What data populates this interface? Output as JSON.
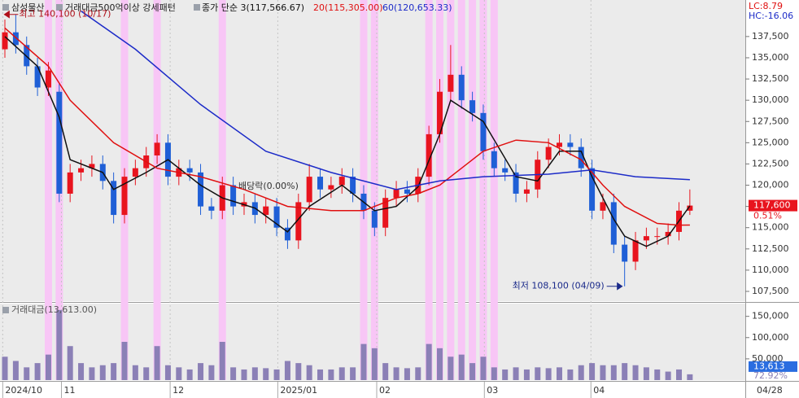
{
  "chart_data": [
    {
      "type": "candlestick",
      "title": "삼성물산",
      "subtitle": "거래대금500억이상 강세패턴",
      "lc_label": "LC:8.79",
      "hc_label": "HC:-16.06",
      "xlim": [
        -0.45,
        68.1
      ],
      "ylim": [
        106350,
        141800
      ],
      "yticks": [
        {
          "value": 107500,
          "label": "107,500"
        },
        {
          "value": 110000,
          "label": "110,000"
        },
        {
          "value": 112500,
          "label": "112,500"
        },
        {
          "value": 115000,
          "label": "115,000"
        },
        {
          "value": 117500,
          "label": "117,500"
        },
        {
          "value": 120000,
          "label": "120,000"
        },
        {
          "value": 122500,
          "label": "122,500"
        },
        {
          "value": 125000,
          "label": "125,000"
        },
        {
          "value": 127500,
          "label": "127,500"
        },
        {
          "value": 130000,
          "label": "130,000"
        },
        {
          "value": 132500,
          "label": "132,500"
        },
        {
          "value": 135000,
          "label": "135,000"
        },
        {
          "value": 137500,
          "label": "137,500"
        }
      ],
      "xticks": [
        {
          "value": -0.2,
          "label": "2024/10"
        },
        {
          "value": 5.2,
          "label": "11"
        },
        {
          "value": 15.2,
          "label": "12"
        },
        {
          "value": 25.1,
          "label": "2025/01"
        },
        {
          "value": 34.2,
          "label": "02"
        },
        {
          "value": 44.1,
          "label": "03"
        },
        {
          "value": 53.9,
          "label": "04"
        }
      ],
      "last_date": "04/28",
      "open": [
        136000,
        138000,
        136500,
        134000,
        131500,
        131000,
        119000,
        121500,
        122000,
        122500,
        120500,
        116500,
        121000,
        122000,
        123500,
        125000,
        121000,
        122000,
        121500,
        117500,
        117000,
        120000,
        117500,
        118000,
        116500,
        117500,
        115000,
        113500,
        118000,
        121000,
        119500,
        120000,
        121000,
        119000,
        117000,
        115000,
        118500,
        119500,
        119000,
        121000,
        126000,
        131000,
        133000,
        130000,
        128500,
        124000,
        122000,
        121500,
        119000,
        119500,
        123000,
        124500,
        125000,
        124500,
        122000,
        117000,
        118000,
        113000,
        111000,
        113500,
        114000,
        114000,
        114500,
        117000
      ],
      "high": [
        139500,
        140100,
        137500,
        135000,
        134500,
        132000,
        122500,
        123000,
        123500,
        123500,
        121500,
        122000,
        123000,
        124500,
        126000,
        126000,
        123000,
        123000,
        122500,
        118500,
        121000,
        121000,
        119000,
        119000,
        118500,
        118500,
        116000,
        119000,
        122500,
        122000,
        121000,
        122000,
        122000,
        120000,
        118000,
        119500,
        120500,
        120500,
        122000,
        127000,
        132500,
        136500,
        134000,
        131000,
        129500,
        125000,
        123000,
        122500,
        120500,
        124000,
        125500,
        126000,
        126000,
        125500,
        123000,
        119000,
        119000,
        114000,
        114500,
        115000,
        115000,
        115500,
        118000,
        119500
      ],
      "low": [
        135000,
        135500,
        133000,
        130500,
        130500,
        118000,
        118000,
        120500,
        121000,
        119500,
        115500,
        115500,
        120000,
        121000,
        122500,
        120000,
        120000,
        120500,
        116500,
        116000,
        116000,
        116500,
        116500,
        115500,
        115500,
        114000,
        112500,
        112500,
        117000,
        118500,
        118500,
        119000,
        118000,
        116000,
        114000,
        114000,
        117500,
        118000,
        118000,
        120000,
        125000,
        130000,
        129000,
        127500,
        123000,
        121000,
        120500,
        118000,
        118000,
        118500,
        122000,
        123500,
        123500,
        121000,
        116000,
        116000,
        112000,
        108100,
        110000,
        112500,
        113000,
        113000,
        113500,
        116500
      ],
      "close": [
        138000,
        136500,
        134000,
        131500,
        133500,
        119000,
        121500,
        122000,
        122500,
        120500,
        116500,
        121000,
        122000,
        123500,
        125000,
        121000,
        122000,
        121500,
        117500,
        117000,
        120000,
        117500,
        118000,
        116500,
        117500,
        115000,
        113500,
        118000,
        121000,
        119500,
        120000,
        121000,
        119000,
        117000,
        115000,
        118500,
        119500,
        119000,
        121000,
        126000,
        131000,
        133000,
        130000,
        128500,
        124000,
        122000,
        121500,
        119000,
        119500,
        123000,
        124500,
        125000,
        124500,
        122000,
        117000,
        118000,
        113000,
        111000,
        113500,
        114000,
        114000,
        114500,
        117000,
        117600
      ],
      "up_color": "#e8141e",
      "down_color": "#1f5fd6",
      "series": [
        {
          "name": "종가 단순 3(117,566.67)",
          "color": "#111111",
          "x": [
            0,
            3,
            5,
            6,
            9,
            10,
            13,
            15,
            18,
            20,
            23,
            26,
            28,
            31,
            34,
            36,
            38,
            40,
            41,
            44,
            47,
            49,
            51,
            53,
            54,
            56,
            57,
            59,
            61,
            63
          ],
          "values": [
            137500,
            134000,
            128000,
            123000,
            121500,
            119500,
            121500,
            123000,
            120000,
            118500,
            117300,
            114500,
            117500,
            120000,
            117000,
            117500,
            119800,
            126000,
            130000,
            127500,
            121000,
            120500,
            124000,
            124000,
            121000,
            116000,
            114000,
            112800,
            114000,
            117567
          ]
        },
        {
          "name": "20(115,305.00)",
          "color": "#e01010",
          "x": [
            0,
            4,
            6,
            10,
            14,
            18,
            22,
            26,
            30,
            33,
            36,
            38,
            40,
            42,
            44,
            47,
            50,
            53,
            55,
            57,
            60,
            62,
            63
          ],
          "values": [
            138500,
            134000,
            130000,
            125000,
            122000,
            121000,
            119500,
            117500,
            117000,
            117000,
            118500,
            119000,
            120000,
            122000,
            124000,
            125300,
            125000,
            123000,
            120000,
            117500,
            115500,
            115300,
            115305
          ]
        },
        {
          "name": "60(120,653.33)",
          "color": "#1c2bc8",
          "x": [
            7,
            12,
            18,
            24,
            30,
            36,
            40,
            44,
            50,
            54,
            58,
            63
          ],
          "values": [
            140500,
            136000,
            129500,
            124000,
            121500,
            119500,
            120500,
            121000,
            121300,
            121800,
            121000,
            120653
          ]
        }
      ],
      "highlights": [
        4,
        5,
        11,
        14,
        20,
        33,
        34,
        39,
        40,
        41,
        42,
        43,
        44,
        45
      ],
      "highlight_color": "#f8c6f6",
      "annotations": [
        {
          "text": "최고 140,100 (10/17)",
          "x": 1,
          "y": 140100,
          "color": "#b0101a"
        },
        {
          "text": "최저 108,100 (04/09)",
          "x": 57,
          "y": 108100,
          "color": "#1a2a8a"
        }
      ],
      "dividend_label": "배당락(0.00%)",
      "last_price_label": "117,600",
      "change_label": "0.51%"
    },
    {
      "type": "bar",
      "title": "거래대금(13,613.00)",
      "color": "#8b80b6",
      "ylim": [
        0,
        180000
      ],
      "yticks": [
        {
          "value": 50000,
          "label": "50,000"
        },
        {
          "value": 100000,
          "label": "100,000"
        },
        {
          "value": 150000,
          "label": "150,000"
        }
      ],
      "values": [
        55000,
        45000,
        30000,
        40000,
        60000,
        165000,
        80000,
        40000,
        30000,
        35000,
        40000,
        90000,
        35000,
        30000,
        80000,
        35000,
        30000,
        25000,
        40000,
        35000,
        90000,
        30000,
        25000,
        30000,
        28000,
        25000,
        45000,
        40000,
        35000,
        25000,
        25000,
        30000,
        30000,
        85000,
        75000,
        40000,
        30000,
        28000,
        30000,
        85000,
        75000,
        55000,
        60000,
        40000,
        55000,
        30000,
        25000,
        30000,
        25000,
        30000,
        28000,
        30000,
        25000,
        35000,
        40000,
        35000,
        35000,
        40000,
        35000,
        30000,
        25000,
        20000,
        25000,
        13613
      ],
      "last_value_label": "13,613",
      "ratio_label": "72.92%"
    }
  ]
}
